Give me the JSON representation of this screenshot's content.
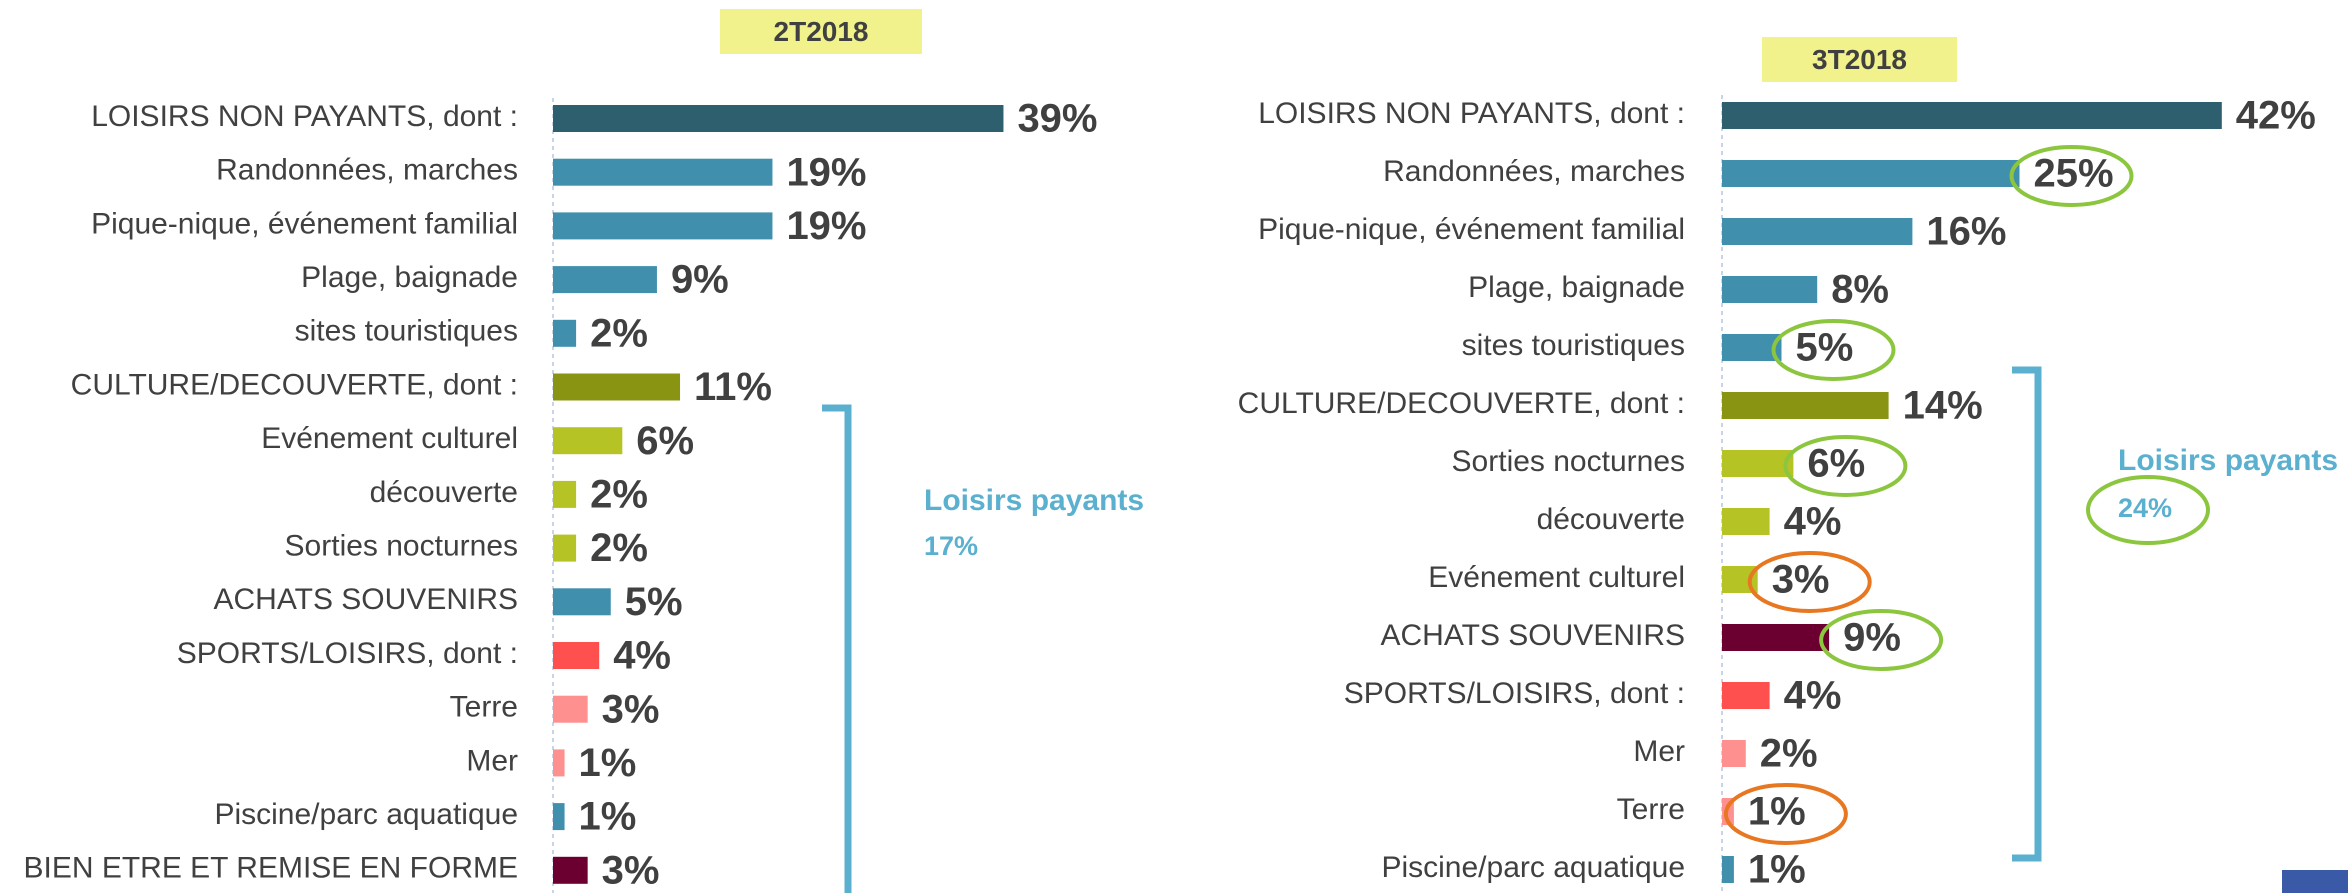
{
  "chart_data": [
    {
      "type": "bar",
      "title": "2T2018",
      "categories": [
        "LOISIRS NON PAYANTS, dont :",
        "Randonnées, marches",
        "Pique-nique, événement familial",
        "Plage, baignade",
        "sites touristiques",
        "CULTURE/DECOUVERTE, dont :",
        "Evénement culturel",
        "découverte",
        "Sorties nocturnes",
        "ACHATS SOUVENIRS",
        "SPORTS/LOISIRS, dont :",
        "Terre",
        "Mer",
        "Piscine/parc aquatique",
        "BIEN ETRE ET REMISE EN FORME"
      ],
      "values": [
        39,
        19,
        19,
        9,
        2,
        11,
        6,
        2,
        2,
        5,
        4,
        3,
        1,
        1,
        3
      ],
      "value_labels": [
        "39%",
        "19%",
        "19%",
        "9%",
        "2%",
        "11%",
        "6%",
        "2%",
        "2%",
        "5%",
        "4%",
        "3%",
        "1%",
        "1%",
        "3%"
      ],
      "colors": [
        "#2e5f6e",
        "#3f8fad",
        "#3f8fad",
        "#3f8fad",
        "#3f8fad",
        "#8a9413",
        "#b5c424",
        "#b5c424",
        "#b5c424",
        "#3f8fad",
        "#ff5050",
        "#ff9090",
        "#ff9090",
        "#3f8fad",
        "#6b0030"
      ],
      "annotations": [
        "Loisirs payants",
        "17%"
      ]
    },
    {
      "type": "bar",
      "title": "3T2018",
      "categories": [
        "LOISIRS NON PAYANTS, dont :",
        "Randonnées, marches",
        "Pique-nique, événement familial",
        "Plage, baignade",
        "sites touristiques",
        "CULTURE/DECOUVERTE, dont :",
        "Sorties nocturnes",
        "découverte",
        "Evénement culturel",
        "ACHATS SOUVENIRS",
        "SPORTS/LOISIRS, dont :",
        "Mer",
        "Terre",
        "Piscine/parc aquatique"
      ],
      "values": [
        42,
        25,
        16,
        8,
        5,
        14,
        6,
        4,
        3,
        9,
        4,
        2,
        1,
        1
      ],
      "value_labels": [
        "42%",
        "25%",
        "16%",
        "8%",
        "5%",
        "14%",
        "6%",
        "4%",
        "3%",
        "9%",
        "4%",
        "2%",
        "1%",
        "1%"
      ],
      "colors": [
        "#2e5f6e",
        "#3f8fad",
        "#3f8fad",
        "#3f8fad",
        "#3f8fad",
        "#8a9413",
        "#b5c424",
        "#b5c424",
        "#b5c424",
        "#6b0030",
        "#ff5050",
        "#ff9090",
        "#ff9090",
        "#3f8fad"
      ],
      "annotations": [
        "Loisirs payants",
        "24%"
      ]
    }
  ]
}
